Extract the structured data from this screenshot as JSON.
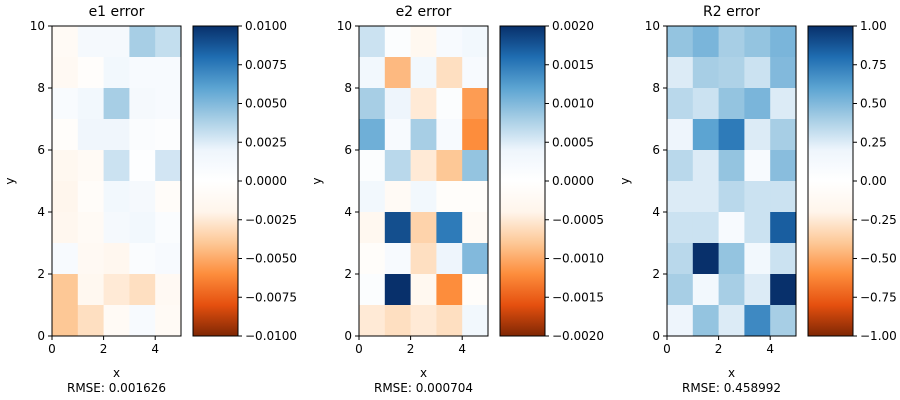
{
  "chart_data": [
    {
      "type": "heatmap",
      "title": "e1 error",
      "xlabel": "x",
      "ylabel": "y",
      "xlim": [
        0,
        5
      ],
      "ylim": [
        0,
        10
      ],
      "x_ticks": [
        0,
        2,
        4
      ],
      "y_ticks": [
        0,
        2,
        4,
        6,
        8,
        10
      ],
      "grid_shape": [
        10,
        5
      ],
      "values_rows_top_to_bottom": [
        [
          -0.001,
          0.0012,
          0.0012,
          0.004,
          0.0032
        ],
        [
          -0.0012,
          -0.0004,
          0.0015,
          0.001,
          0.001
        ],
        [
          0.0008,
          0.0015,
          0.004,
          0.0012,
          0.001
        ],
        [
          -0.0005,
          0.0018,
          0.0018,
          0.0006,
          0.0004
        ],
        [
          -0.0015,
          -0.001,
          0.003,
          0.0002,
          0.0028
        ],
        [
          -0.0018,
          -0.0006,
          0.0015,
          0.0012,
          -0.0006
        ],
        [
          -0.0016,
          -0.001,
          0.0012,
          0.0015,
          0.0006
        ],
        [
          0.001,
          -0.0012,
          -0.0016,
          0.0006,
          0.001
        ],
        [
          -0.004,
          -0.0015,
          -0.0025,
          -0.003,
          -0.0012
        ],
        [
          -0.004,
          -0.003,
          -0.001,
          0.001,
          -0.001
        ]
      ],
      "colorbar": {
        "min": -0.01,
        "max": 0.01,
        "ticks": [
          0.01,
          0.0075,
          0.005,
          0.0025,
          0.0,
          -0.0025,
          -0.005,
          -0.0075,
          -0.01
        ],
        "tick_labels": [
          "0.0100",
          "0.0075",
          "0.0050",
          "0.0025",
          "0.0000",
          "−0.0025",
          "−0.0050",
          "−0.0075",
          "−0.0100"
        ]
      },
      "rmse": "RMSE: 0.001626"
    },
    {
      "type": "heatmap",
      "title": "e2 error",
      "xlabel": "x",
      "ylabel": "y",
      "xlim": [
        0,
        5
      ],
      "ylim": [
        0,
        10
      ],
      "x_ticks": [
        0,
        2,
        4
      ],
      "y_ticks": [
        0,
        2,
        4,
        6,
        8,
        10
      ],
      "grid_shape": [
        10,
        5
      ],
      "values_rows_top_to_bottom": [
        [
          0.0006,
          0.0001,
          -0.0003,
          0.0002,
          0.0003
        ],
        [
          0.0003,
          -0.0009,
          0.0003,
          -0.0006,
          0.0002
        ],
        [
          0.0008,
          0.0004,
          -0.0005,
          0.0001,
          -0.0011
        ],
        [
          0.0011,
          0.0002,
          0.0008,
          0.0002,
          -0.0012
        ],
        [
          0.0001,
          0.0007,
          -0.0005,
          -0.0008,
          0.0009
        ],
        [
          0.0003,
          -0.0002,
          0.0003,
          -0.0001,
          -0.0001
        ],
        [
          -0.0003,
          0.0018,
          -0.0007,
          0.0015,
          -0.0002
        ],
        [
          -0.0001,
          0.0002,
          -0.0006,
          0.0004,
          0.001
        ],
        [
          0.0001,
          0.002,
          -0.0003,
          -0.0012,
          -0.0001
        ],
        [
          -0.0005,
          -0.0006,
          -0.0005,
          -0.0006,
          0.0003
        ]
      ],
      "colorbar": {
        "min": -0.002,
        "max": 0.002,
        "ticks": [
          0.002,
          0.0015,
          0.001,
          0.0005,
          0.0,
          -0.0005,
          -0.001,
          -0.0015,
          -0.002
        ],
        "tick_labels": [
          "0.0020",
          "0.0015",
          "0.0010",
          "0.0005",
          "0.0000",
          "−0.0005",
          "−0.0010",
          "−0.0015",
          "−0.0020"
        ]
      },
      "rmse": "RMSE: 0.000704"
    },
    {
      "type": "heatmap",
      "title": "R2 error",
      "xlabel": "x",
      "ylabel": "y",
      "xlim": [
        0,
        5
      ],
      "ylim": [
        0,
        10
      ],
      "x_ticks": [
        0,
        2,
        4
      ],
      "y_ticks": [
        0,
        2,
        4,
        6,
        8,
        10
      ],
      "grid_shape": [
        10,
        5
      ],
      "values_rows_top_to_bottom": [
        [
          0.45,
          0.52,
          0.4,
          0.45,
          0.52
        ],
        [
          0.25,
          0.4,
          0.38,
          0.3,
          0.5
        ],
        [
          0.35,
          0.3,
          0.45,
          0.52,
          0.25
        ],
        [
          0.2,
          0.6,
          0.75,
          0.25,
          0.4
        ],
        [
          0.35,
          0.25,
          0.45,
          0.1,
          0.48
        ],
        [
          0.25,
          0.25,
          0.35,
          0.3,
          0.3
        ],
        [
          0.3,
          0.3,
          0.1,
          0.3,
          0.85
        ],
        [
          0.35,
          1.0,
          0.45,
          0.15,
          0.3
        ],
        [
          0.4,
          0.15,
          0.4,
          0.25,
          1.0
        ],
        [
          0.2,
          0.45,
          0.25,
          0.7,
          0.4
        ]
      ],
      "colorbar": {
        "min": -1,
        "max": 1,
        "ticks": [
          1.0,
          0.75,
          0.5,
          0.25,
          0.0,
          -0.25,
          -0.5,
          -0.75,
          -1.0
        ],
        "tick_labels": [
          "1.00",
          "0.75",
          "0.50",
          "0.25",
          "0.00",
          "−0.25",
          "−0.50",
          "−0.75",
          "−1.00"
        ]
      },
      "rmse": "RMSE: 0.458992"
    }
  ],
  "colormap": {
    "name": "diverging orange-white-blue",
    "stops": [
      "#7f2704",
      "#e5500f",
      "#fd8d3c",
      "#fdc896",
      "#fff5eb",
      "#ffffff",
      "#eef5fc",
      "#a7cee5",
      "#5ca4d2",
      "#1f6db1",
      "#08306b"
    ]
  }
}
